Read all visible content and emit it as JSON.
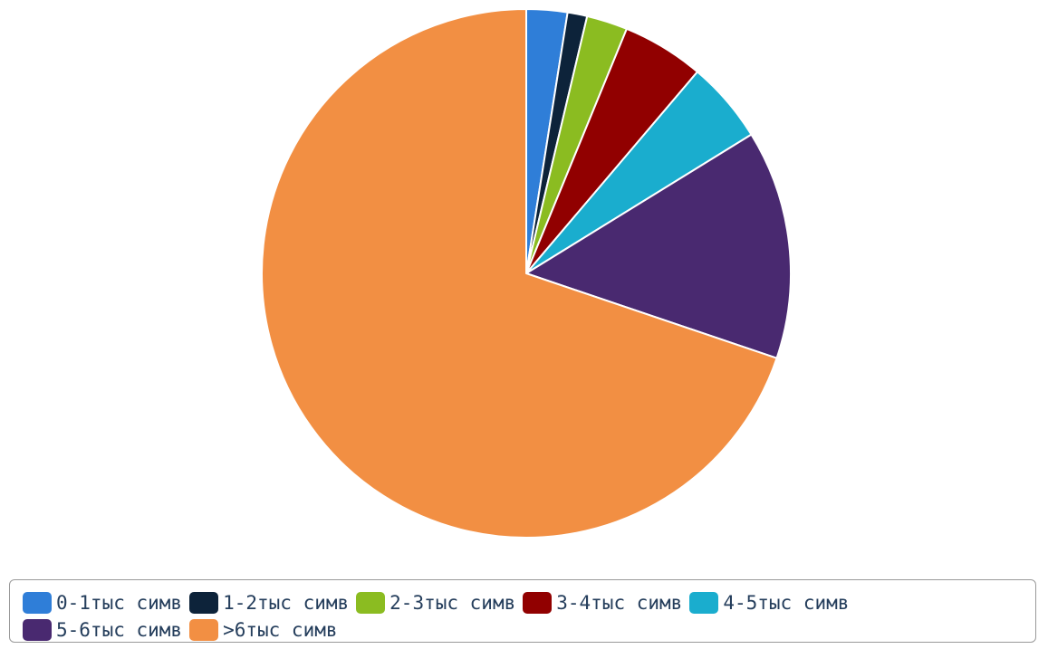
{
  "chart_data": {
    "type": "pie",
    "title": "",
    "legend_position": "bottom",
    "slices": [
      {
        "label": "0-1тыс симв",
        "value": 2.5,
        "color": "#2f7ed8"
      },
      {
        "label": "1-2тыс симв",
        "value": 1.2,
        "color": "#0d233a"
      },
      {
        "label": "2-3тыс симв",
        "value": 2.5,
        "color": "#8bbc21"
      },
      {
        "label": "3-4тыс симв",
        "value": 5.0,
        "color": "#910000"
      },
      {
        "label": "4-5тыс симв",
        "value": 5.0,
        "color": "#1aadce"
      },
      {
        "label": "5-6тыс симв",
        "value": 14.0,
        "color": "#492970"
      },
      {
        "label": ">6тыс симв",
        "value": 69.8,
        "color": "#f28f43"
      }
    ]
  }
}
